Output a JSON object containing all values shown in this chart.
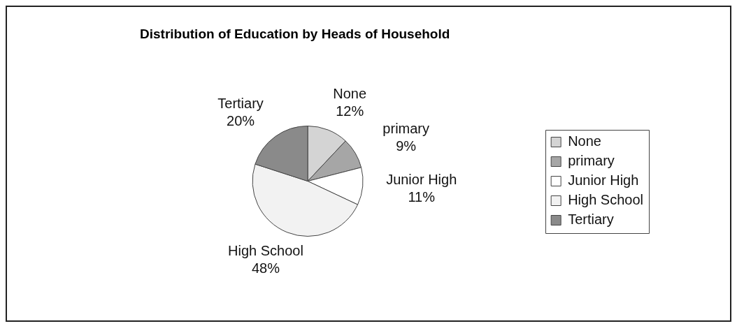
{
  "chart_data": {
    "type": "pie",
    "title": "Distribution of Education by Heads of Household",
    "categories": [
      "None",
      "primary",
      "Junior High",
      "High School",
      "Tertiary"
    ],
    "values": [
      12,
      9,
      11,
      48,
      20
    ],
    "value_labels": [
      "12%",
      "9%",
      "11%",
      "48%",
      "20%"
    ],
    "colors": [
      "#d4d4d4",
      "#a6a6a6",
      "#ffffff",
      "#f2f2f2",
      "#8a8a8a"
    ],
    "legend": "right"
  }
}
